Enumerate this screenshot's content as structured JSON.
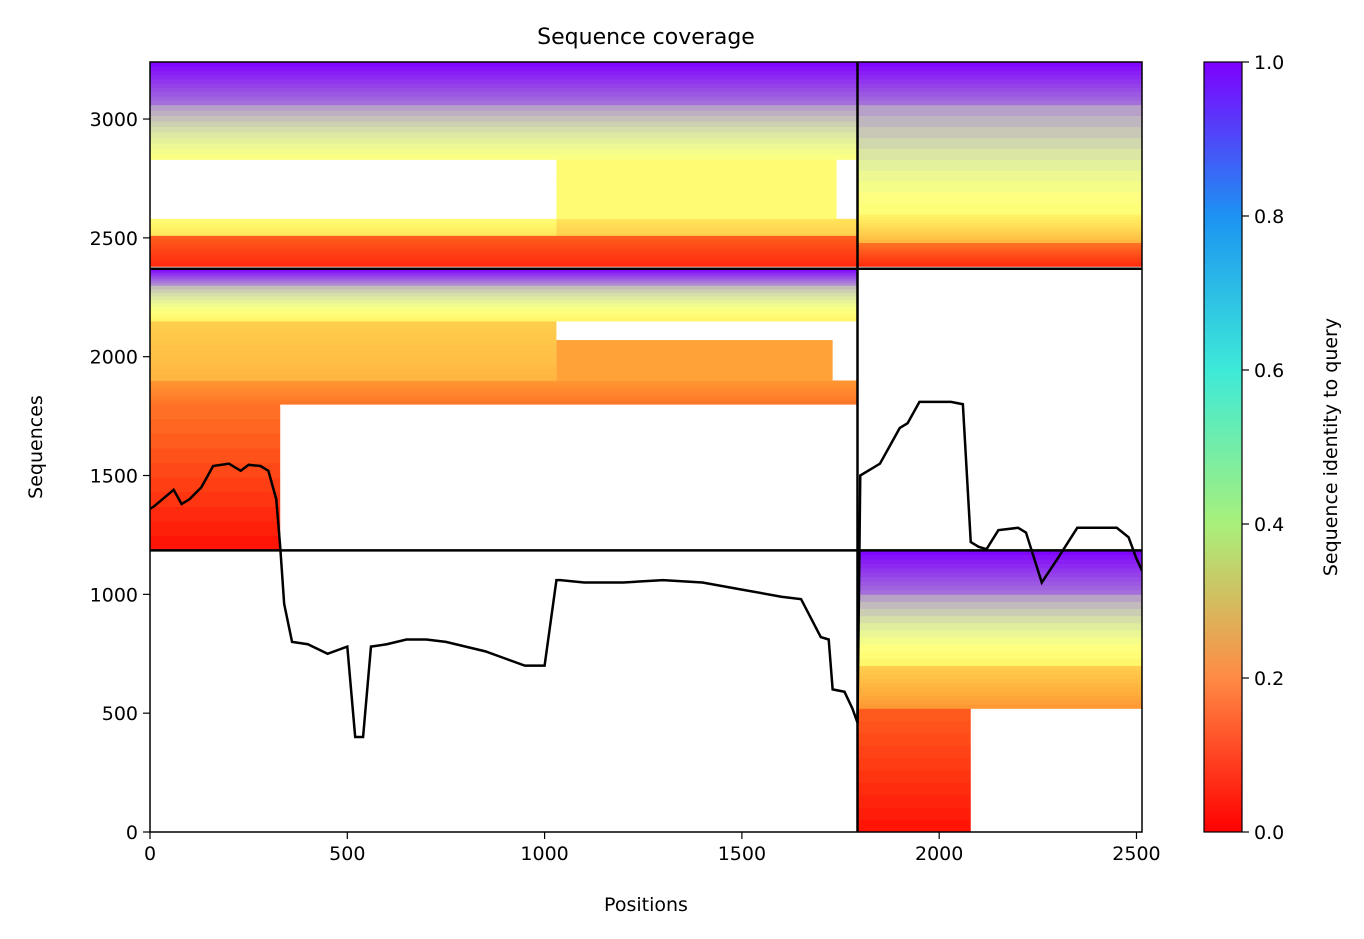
{
  "chart_data": {
    "type": "heatmap",
    "title": "Sequence coverage",
    "xlabel": "Positions",
    "ylabel": "Sequences",
    "xlim": [
      0,
      2514
    ],
    "ylim": [
      0,
      3240
    ],
    "xticks": [
      0,
      500,
      1000,
      1500,
      2000,
      2500
    ],
    "yticks": [
      0,
      500,
      1000,
      1500,
      2000,
      2500,
      3000
    ],
    "grid": false,
    "dividers": {
      "vertical_x": [
        1793
      ],
      "horizontal_y": [
        1185,
        2370
      ]
    },
    "colorbar": {
      "label": "Sequence identity to query",
      "range": [
        0.0,
        1.0
      ],
      "ticks": [
        0.0,
        0.2,
        0.4,
        0.6,
        0.8,
        1.0
      ],
      "tick_labels": [
        "0.0",
        "0.2",
        "0.4",
        "0.6",
        "0.8",
        "1.0"
      ],
      "colormap": "rainbow"
    },
    "coverage_blocks": [
      {
        "x": [
          0,
          1793
        ],
        "y": [
          2380,
          2510
        ],
        "identity": [
          0.05,
          0.12
        ]
      },
      {
        "x": [
          1030,
          1793
        ],
        "y": [
          2510,
          2580
        ],
        "identity": [
          0.3,
          0.35
        ]
      },
      {
        "x": [
          0,
          1030
        ],
        "y": [
          2510,
          2580
        ],
        "identity": [
          0.35,
          0.45
        ]
      },
      {
        "x": [
          1030,
          1740
        ],
        "y": [
          2580,
          2830
        ],
        "identity": [
          0.45,
          0.45
        ]
      },
      {
        "x": [
          0,
          1793
        ],
        "y": [
          2830,
          3060
        ],
        "identity": [
          0.5,
          0.8
        ]
      },
      {
        "x": [
          0,
          1793
        ],
        "y": [
          3060,
          3240
        ],
        "identity": [
          0.85,
          1.0
        ]
      },
      {
        "x": [
          1793,
          2514
        ],
        "y": [
          2380,
          2480
        ],
        "identity": [
          0.05,
          0.15
        ]
      },
      {
        "x": [
          1793,
          2514
        ],
        "y": [
          2480,
          2600
        ],
        "identity": [
          0.25,
          0.4
        ]
      },
      {
        "x": [
          1793,
          2514
        ],
        "y": [
          2600,
          3060
        ],
        "identity": [
          0.45,
          0.8
        ]
      },
      {
        "x": [
          1793,
          2514
        ],
        "y": [
          3060,
          3240
        ],
        "identity": [
          0.85,
          1.0
        ]
      },
      {
        "x": [
          0,
          330
        ],
        "y": [
          1185,
          1800
        ],
        "identity": [
          0.02,
          0.15
        ]
      },
      {
        "x": [
          0,
          1793
        ],
        "y": [
          1800,
          1900
        ],
        "identity": [
          0.15,
          0.2
        ]
      },
      {
        "x": [
          0,
          1030
        ],
        "y": [
          1900,
          2150
        ],
        "identity": [
          0.25,
          0.3
        ]
      },
      {
        "x": [
          1030,
          1730
        ],
        "y": [
          1900,
          2070
        ],
        "identity": [
          0.22,
          0.22
        ]
      },
      {
        "x": [
          0,
          1793
        ],
        "y": [
          2150,
          2300
        ],
        "identity": [
          0.4,
          0.75
        ]
      },
      {
        "x": [
          0,
          1793
        ],
        "y": [
          2300,
          2370
        ],
        "identity": [
          0.8,
          1.0
        ]
      },
      {
        "x": [
          1793,
          2080
        ],
        "y": [
          0,
          520
        ],
        "identity": [
          0.02,
          0.12
        ]
      },
      {
        "x": [
          1793,
          2514
        ],
        "y": [
          520,
          700
        ],
        "identity": [
          0.2,
          0.3
        ]
      },
      {
        "x": [
          1793,
          2514
        ],
        "y": [
          700,
          1000
        ],
        "identity": [
          0.4,
          0.8
        ]
      },
      {
        "x": [
          1793,
          2514
        ],
        "y": [
          1000,
          1185
        ],
        "identity": [
          0.85,
          1.0
        ]
      }
    ],
    "coverage_line": {
      "x": [
        0,
        10,
        60,
        80,
        100,
        130,
        160,
        200,
        230,
        250,
        280,
        300,
        320,
        330,
        340,
        360,
        400,
        450,
        500,
        520,
        540,
        560,
        600,
        650,
        700,
        750,
        800,
        850,
        900,
        950,
        1000,
        1030,
        1040,
        1100,
        1200,
        1300,
        1400,
        1500,
        1600,
        1650,
        1700,
        1720,
        1730,
        1760,
        1780,
        1793,
        1800,
        1850,
        1900,
        1920,
        1950,
        2000,
        2030,
        2060,
        2080,
        2100,
        2120,
        2150,
        2200,
        2220,
        2260,
        2300,
        2350,
        2400,
        2450,
        2480,
        2500,
        2514
      ],
      "y": [
        1360,
        1370,
        1440,
        1380,
        1400,
        1450,
        1540,
        1550,
        1520,
        1545,
        1540,
        1520,
        1400,
        1200,
        960,
        800,
        790,
        750,
        780,
        400,
        400,
        780,
        790,
        810,
        810,
        800,
        780,
        760,
        730,
        700,
        700,
        1060,
        1060,
        1050,
        1050,
        1060,
        1050,
        1020,
        990,
        980,
        820,
        810,
        600,
        590,
        520,
        460,
        1500,
        1550,
        1700,
        1720,
        1810,
        1810,
        1810,
        1800,
        1220,
        1200,
        1190,
        1270,
        1280,
        1260,
        1050,
        1150,
        1280,
        1280,
        1280,
        1240,
        1150,
        1100
      ]
    }
  }
}
